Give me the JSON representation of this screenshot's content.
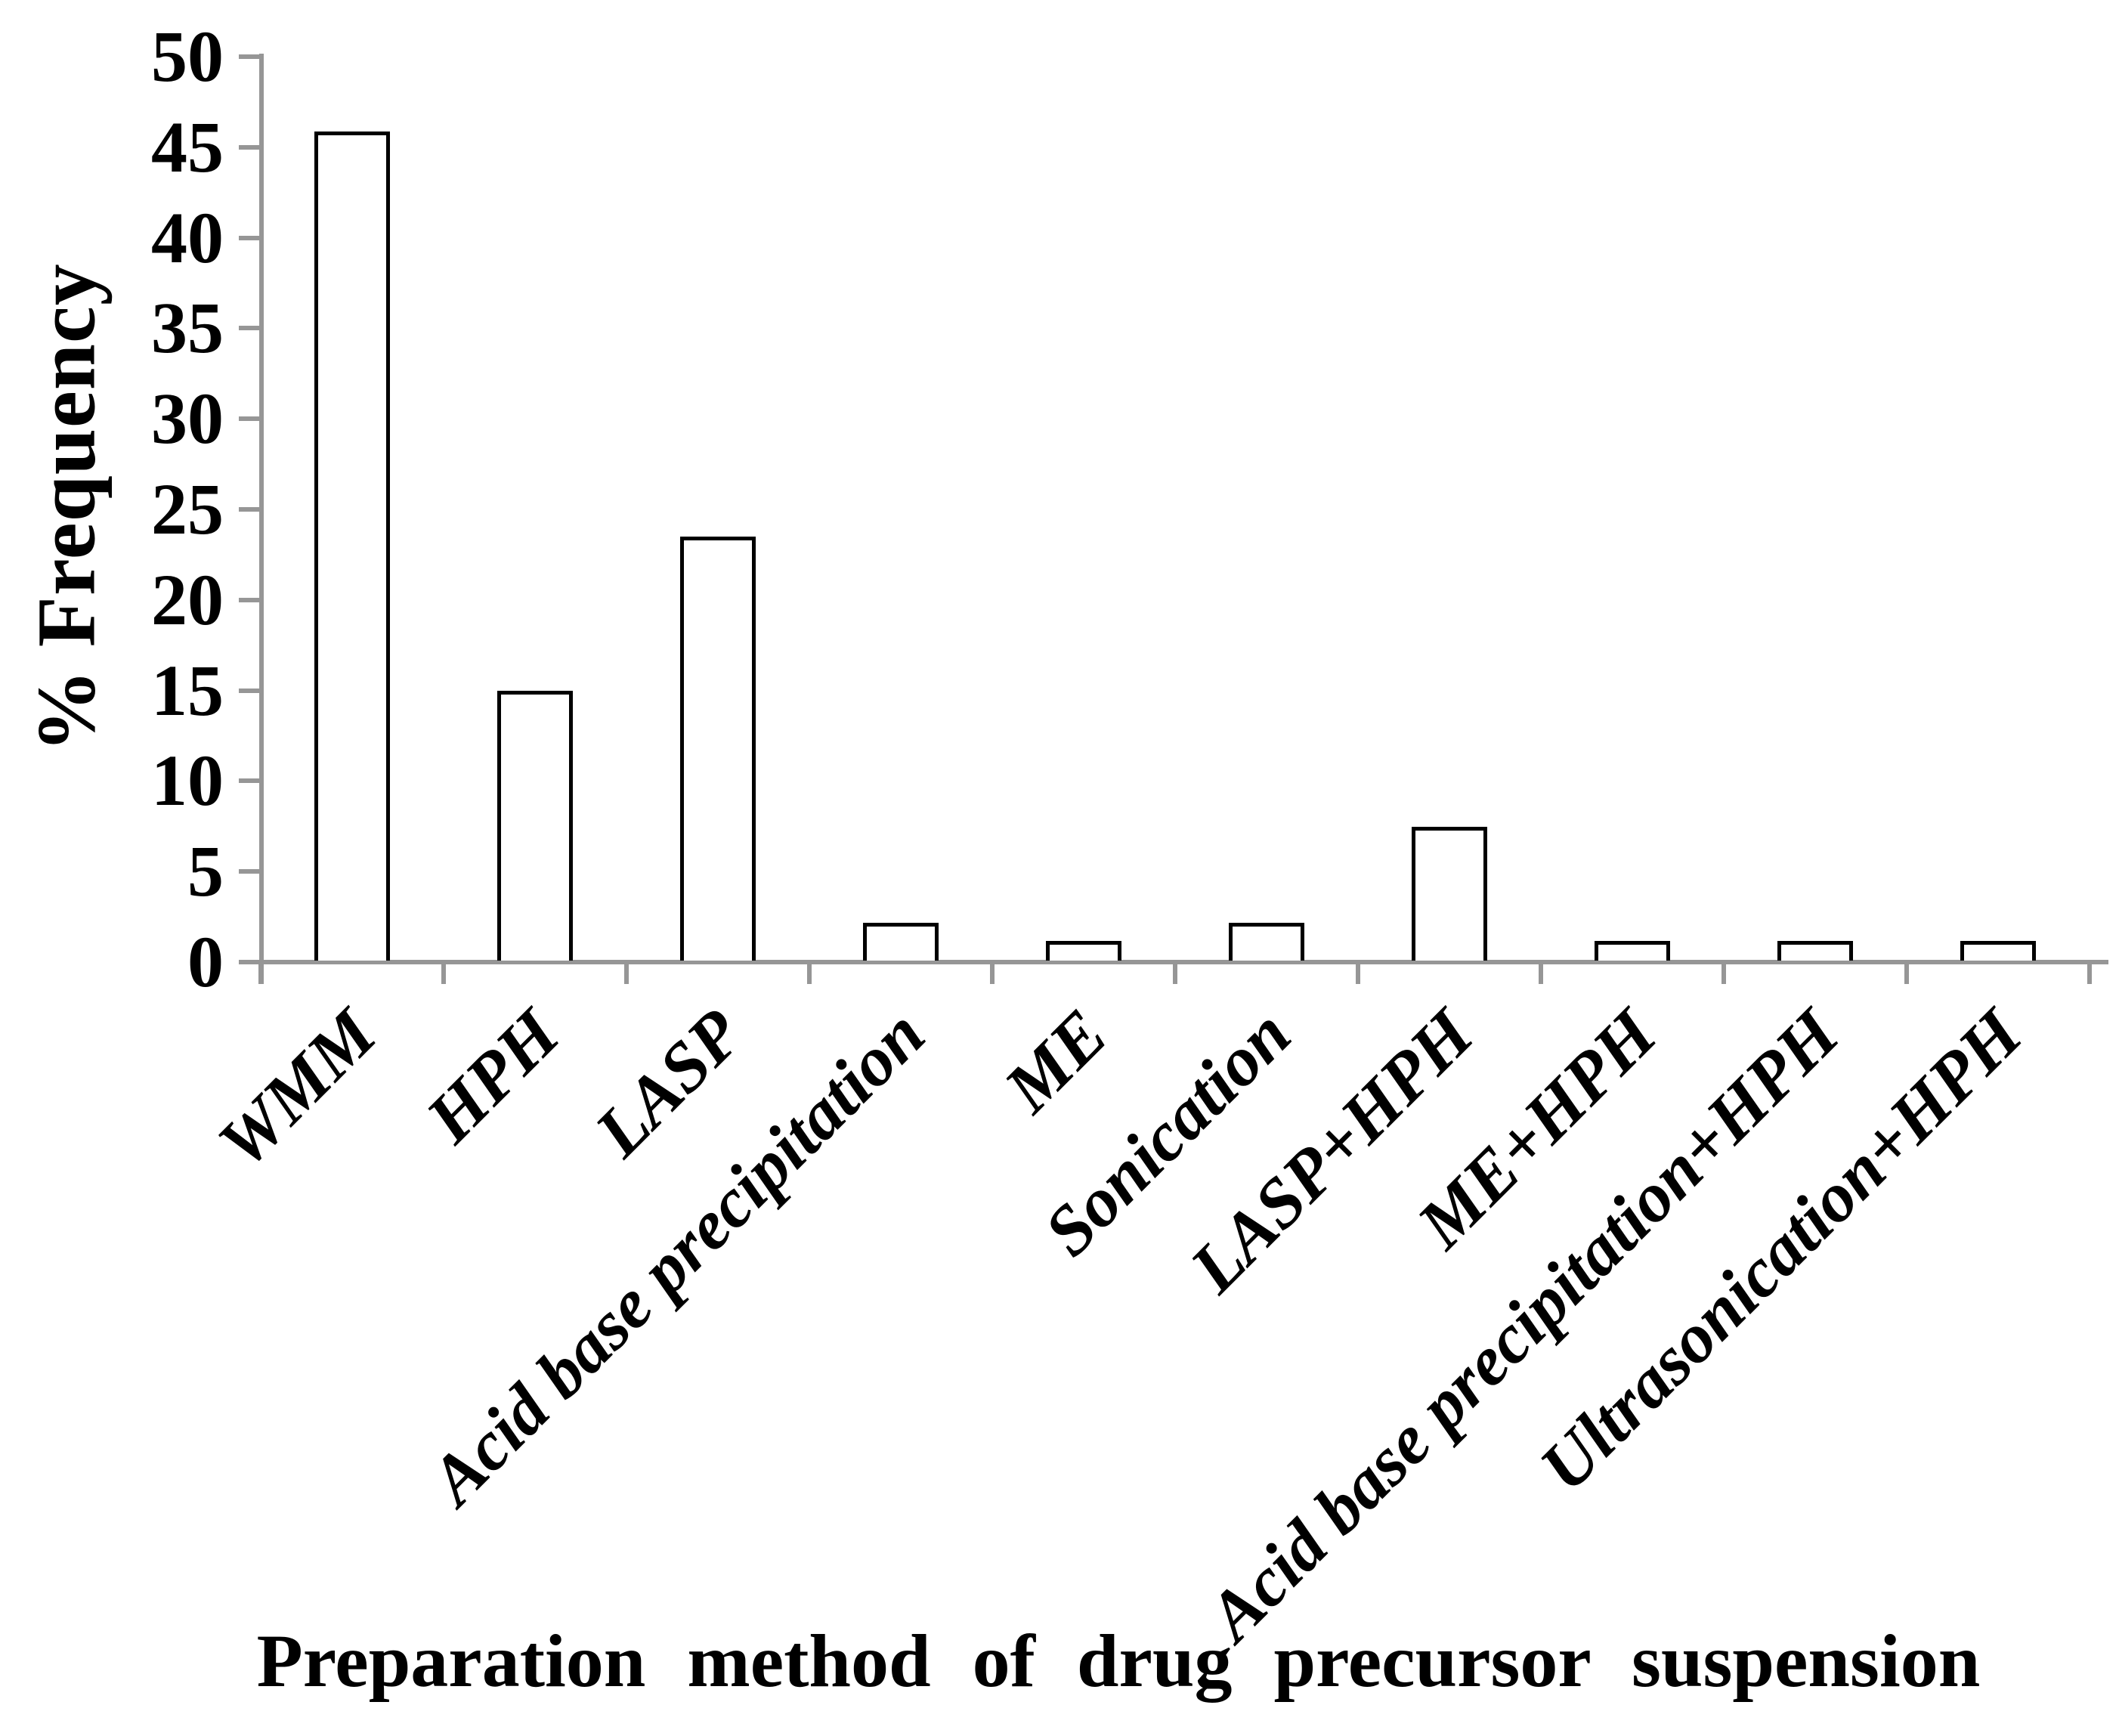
{
  "chart_data": {
    "type": "bar",
    "title": "",
    "xlabel": "Preparation method of drug precursor suspension",
    "ylabel": "% Frequency",
    "categories": [
      "WMM",
      "HPH",
      "LASP",
      "Acid base precipitation",
      "ME",
      "Sonication",
      "LASP+HPH",
      "ME+HPH",
      "Acid base precipitation+HPH",
      "Ultrasonication+HPH"
    ],
    "values": [
      45.8,
      14.9,
      23.4,
      2.1,
      1.1,
      2.1,
      7.4,
      1.1,
      1.1,
      1.1
    ],
    "ylim": [
      0,
      50
    ],
    "yticks": [
      0,
      5,
      10,
      15,
      20,
      25,
      30,
      35,
      40,
      45,
      50
    ],
    "ytick_step": 5,
    "grid": false,
    "legend": false,
    "bar_fill": "#ffffff",
    "bar_border": "#000000",
    "axis_color": "#969696",
    "text_color": "#000000",
    "category_label_rotation_deg": -45
  }
}
